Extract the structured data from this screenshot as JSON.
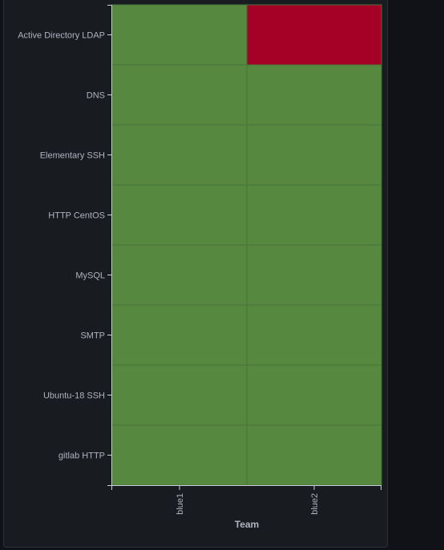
{
  "chart_data": {
    "type": "heatmap",
    "xlabel": "Team",
    "ylabel": "",
    "x_categories": [
      "blue1",
      "blue2"
    ],
    "y_categories": [
      "Active Directory LDAP",
      "DNS",
      "Elementary SSH",
      "HTTP CentOS",
      "MySQL",
      "SMTP",
      "Ubuntu-18 SSH",
      "gitlab HTTP"
    ],
    "values": [
      [
        1,
        0
      ],
      [
        1,
        1
      ],
      [
        1,
        1
      ],
      [
        1,
        1
      ],
      [
        1,
        1
      ],
      [
        1,
        1
      ],
      [
        1,
        1
      ],
      [
        1,
        1
      ]
    ],
    "colors": {
      "up": "#56883f",
      "down": "#a50026",
      "cell_border": "#47723a",
      "axis": "#ccccdc",
      "panel_bg": "#181b1f"
    },
    "grid": false,
    "legend": "none"
  }
}
